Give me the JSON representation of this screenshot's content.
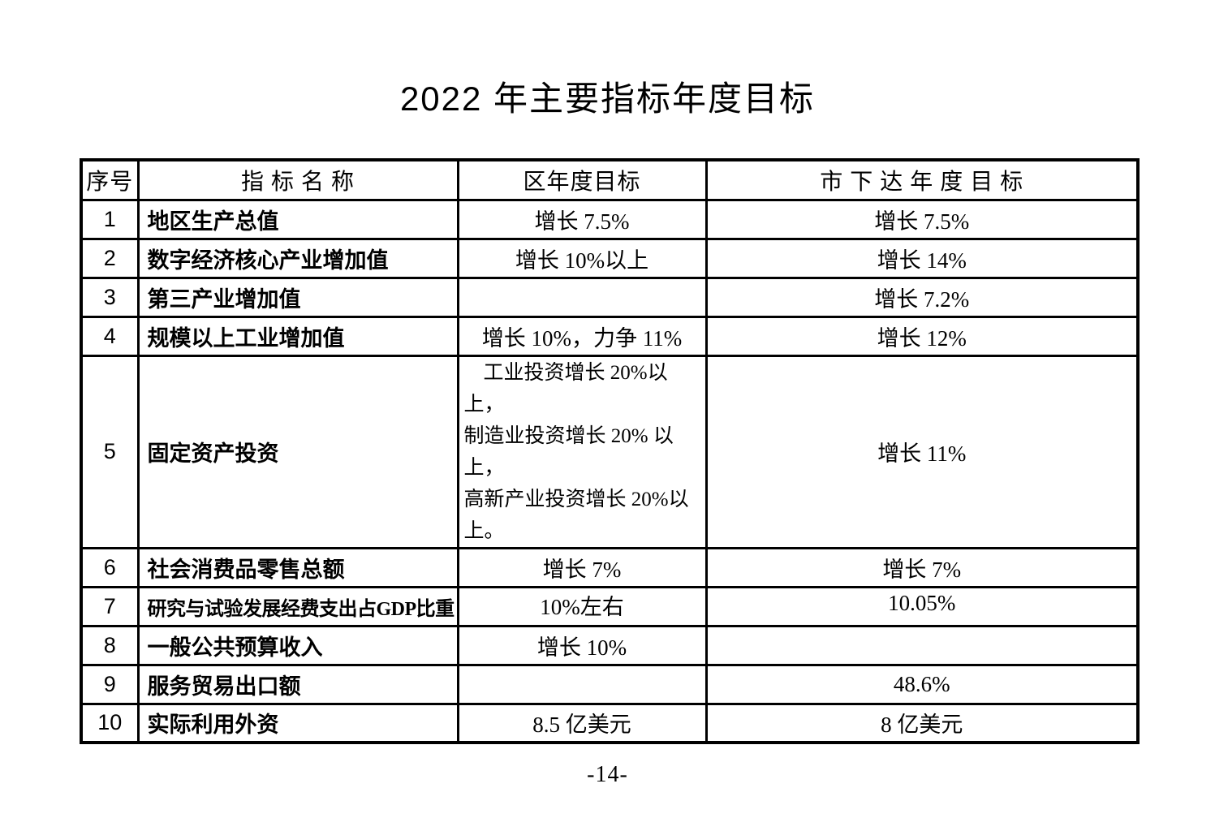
{
  "page": {
    "title": "2022 年主要指标年度目标",
    "page_number": "-14-"
  },
  "colors": {
    "text": "#000000",
    "background": "#ffffff",
    "table_border": "#000000"
  },
  "table": {
    "headers": [
      "序号",
      "指 标 名 称",
      "区年度目标",
      "市 下 达 年 度 目 标"
    ],
    "rows": [
      {
        "num": "1",
        "name": "地区生产总值",
        "district": "增长 7.5%",
        "city": "增长 7.5%"
      },
      {
        "num": "2",
        "name": "数字经济核心产业增加值",
        "district": "增长 10%以上",
        "city": "增长 14%"
      },
      {
        "num": "3",
        "name": "第三产业增加值",
        "district": "",
        "city": "增长 7.2%"
      },
      {
        "num": "4",
        "name": "规模以上工业增加值",
        "district": "增长 10%，力争 11%",
        "city": "增长 12%"
      },
      {
        "num": "5",
        "name": "固定资产投资",
        "district": "工业投资增长 20%以上，\n制造业投资增长 20% 以上，\n高新产业投资增长 20%以上。",
        "city": "增长 11%",
        "multiline": true
      },
      {
        "num": "6",
        "name": "社会消费品零售总额",
        "district": "增长 7%",
        "city": "增长 7%"
      },
      {
        "num": "7",
        "name": "研究与试验发展经费支出占GDP比重",
        "district": "10%左右",
        "city": "10.05%"
      },
      {
        "num": "8",
        "name": "一般公共预算收入",
        "district": "增长 10%",
        "city": ""
      },
      {
        "num": "9",
        "name": "服务贸易出口额",
        "district": "",
        "city": "48.6%"
      },
      {
        "num": "10",
        "name": "实际利用外资",
        "district": "8.5 亿美元",
        "city": "8 亿美元"
      }
    ]
  }
}
